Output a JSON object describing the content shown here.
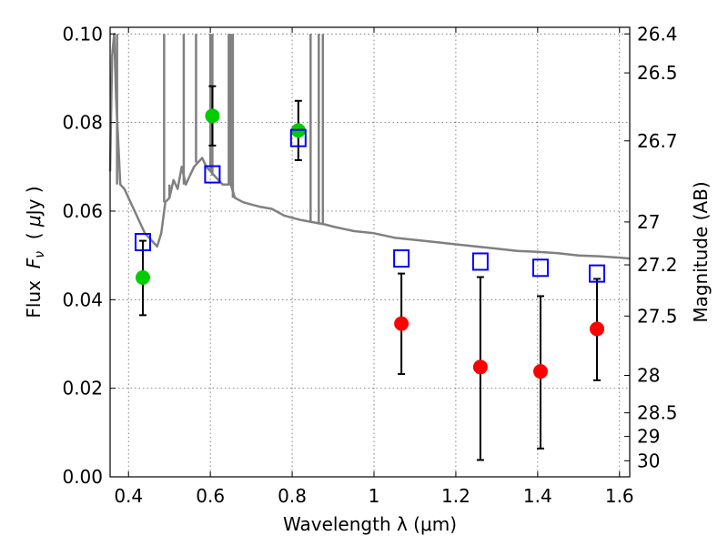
{
  "chart_data": {
    "type": "scatter",
    "xlabel": "Wavelength  λ (μm)",
    "ylabel_parts": [
      "Flux  ",
      "F",
      "ν",
      "  ( ",
      "μ",
      "Jy )"
    ],
    "ylabel_right": "Magnitude (AB)",
    "xlim": [
      0.355,
      1.625
    ],
    "ylim": [
      0.0,
      0.1015
    ],
    "grid": true,
    "x_ticks": [
      {
        "value": 0.4,
        "label": "0.4"
      },
      {
        "value": 0.6,
        "label": "0.6"
      },
      {
        "value": 0.8,
        "label": "0.8"
      },
      {
        "value": 1.0,
        "label": "1"
      },
      {
        "value": 1.2,
        "label": "1.2"
      },
      {
        "value": 1.4,
        "label": "1.4"
      },
      {
        "value": 1.6,
        "label": "1.6"
      }
    ],
    "y_ticks": [
      {
        "value": 0.0,
        "label": "0.00"
      },
      {
        "value": 0.02,
        "label": "0.02"
      },
      {
        "value": 0.04,
        "label": "0.04"
      },
      {
        "value": 0.06,
        "label": "0.06"
      },
      {
        "value": 0.08,
        "label": "0.08"
      },
      {
        "value": 0.1,
        "label": "0.10"
      }
    ],
    "mag_ticks": [
      {
        "mag": 26.4,
        "label": "26.4"
      },
      {
        "mag": 26.5,
        "label": "26.5"
      },
      {
        "mag": 26.7,
        "label": "26.7"
      },
      {
        "mag": 27.0,
        "label": "27"
      },
      {
        "mag": 27.2,
        "label": "27.2"
      },
      {
        "mag": 27.5,
        "label": "27.5"
      },
      {
        "mag": 28.0,
        "label": "28"
      },
      {
        "mag": 28.5,
        "label": "28.5"
      },
      {
        "mag": 29.0,
        "label": "29"
      },
      {
        "mag": 30.0,
        "label": "30"
      }
    ],
    "colors": {
      "model": "#808080",
      "detection": "#00cc00",
      "upper": "#ff0000",
      "model_band": "#0000ff",
      "errorbar": "#000000",
      "grid": "#666666"
    },
    "model_spectrum": {
      "x": [
        0.355,
        0.36,
        0.365,
        0.37,
        0.38,
        0.39,
        0.4,
        0.41,
        0.42,
        0.43,
        0.44,
        0.45,
        0.46,
        0.47,
        0.48,
        0.49,
        0.5,
        0.51,
        0.52,
        0.53,
        0.54,
        0.55,
        0.56,
        0.57,
        0.58,
        0.59,
        0.6,
        0.61,
        0.62,
        0.63,
        0.64,
        0.65,
        0.66,
        0.68,
        0.7,
        0.72,
        0.75,
        0.78,
        0.8,
        0.82,
        0.85,
        0.88,
        0.9,
        0.95,
        1.0,
        1.05,
        1.1,
        1.15,
        1.2,
        1.25,
        1.3,
        1.35,
        1.4,
        1.45,
        1.5,
        1.55,
        1.6,
        1.625
      ],
      "y": [
        0.069,
        0.095,
        0.1,
        0.085,
        0.066,
        0.065,
        0.063,
        0.061,
        0.059,
        0.057,
        0.055,
        0.054,
        0.053,
        0.052,
        0.055,
        0.062,
        0.063,
        0.067,
        0.065,
        0.07,
        0.066,
        0.068,
        0.07,
        0.071,
        0.072,
        0.07,
        0.069,
        0.068,
        0.067,
        0.066,
        0.066,
        0.066,
        0.063,
        0.062,
        0.0615,
        0.061,
        0.0605,
        0.059,
        0.0585,
        0.058,
        0.0575,
        0.057,
        0.0565,
        0.0555,
        0.055,
        0.054,
        0.0535,
        0.053,
        0.0525,
        0.052,
        0.0515,
        0.051,
        0.0508,
        0.0505,
        0.05,
        0.0498,
        0.0495,
        0.0493
      ]
    },
    "emission_lines": [
      {
        "x": 0.365,
        "y": 0.1
      },
      {
        "x": 0.372,
        "y": 0.1
      },
      {
        "x": 0.487,
        "y": 0.1
      },
      {
        "x": 0.5,
        "y": 0.066
      },
      {
        "x": 0.535,
        "y": 0.1
      },
      {
        "x": 0.565,
        "y": 0.1
      },
      {
        "x": 0.6,
        "y": 0.1
      },
      {
        "x": 0.605,
        "y": 0.1
      },
      {
        "x": 0.645,
        "y": 0.1
      },
      {
        "x": 0.65,
        "y": 0.1
      },
      {
        "x": 0.655,
        "y": 0.1
      },
      {
        "x": 0.845,
        "y": 0.1
      },
      {
        "x": 0.865,
        "y": 0.1
      },
      {
        "x": 0.875,
        "y": 0.1
      }
    ],
    "series": [
      {
        "kind": "detection",
        "x": [
          0.435,
          0.605,
          0.815
        ],
        "y": [
          0.045,
          0.0815,
          0.0782
        ],
        "yerr_low": [
          0.0365,
          0.0748,
          0.0715
        ],
        "yerr_high": [
          0.0533,
          0.0882,
          0.0849
        ]
      },
      {
        "kind": "upper",
        "x": [
          1.067,
          1.26,
          1.407,
          1.545
        ],
        "y": [
          0.0346,
          0.0248,
          0.0238,
          0.0334
        ],
        "yerr_low": [
          0.0232,
          0.0038,
          0.0064,
          0.0218
        ],
        "yerr_high": [
          0.0459,
          0.0451,
          0.0408,
          0.0447
        ]
      },
      {
        "kind": "model_band",
        "x": [
          0.435,
          0.605,
          0.815,
          1.067,
          1.26,
          1.407,
          1.545
        ],
        "y": [
          0.053,
          0.0683,
          0.0765,
          0.0493,
          0.0486,
          0.0472,
          0.0459
        ]
      }
    ]
  }
}
